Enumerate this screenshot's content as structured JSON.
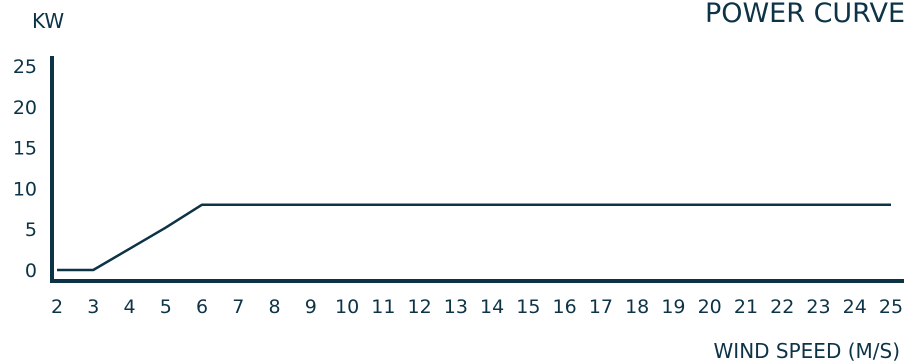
{
  "chart_data": {
    "type": "line",
    "title": "POWER CURVE",
    "xlabel": "WIND SPEED (M/S)",
    "ylabel": "KW",
    "xlim": [
      2,
      25
    ],
    "ylim": [
      0,
      25
    ],
    "x_ticks": [
      2,
      3,
      4,
      5,
      6,
      7,
      8,
      9,
      10,
      11,
      12,
      13,
      14,
      15,
      16,
      17,
      18,
      19,
      20,
      21,
      22,
      23,
      24,
      25
    ],
    "y_ticks": [
      0,
      5,
      10,
      15,
      20,
      25
    ],
    "grid": false,
    "colors": {
      "ink": "#0d3347",
      "background": "#ffffff"
    },
    "series": [
      {
        "x": [
          2,
          3,
          4,
          5,
          6,
          25
        ],
        "values": [
          0,
          0,
          2.6,
          5.2,
          8,
          8
        ]
      }
    ]
  }
}
